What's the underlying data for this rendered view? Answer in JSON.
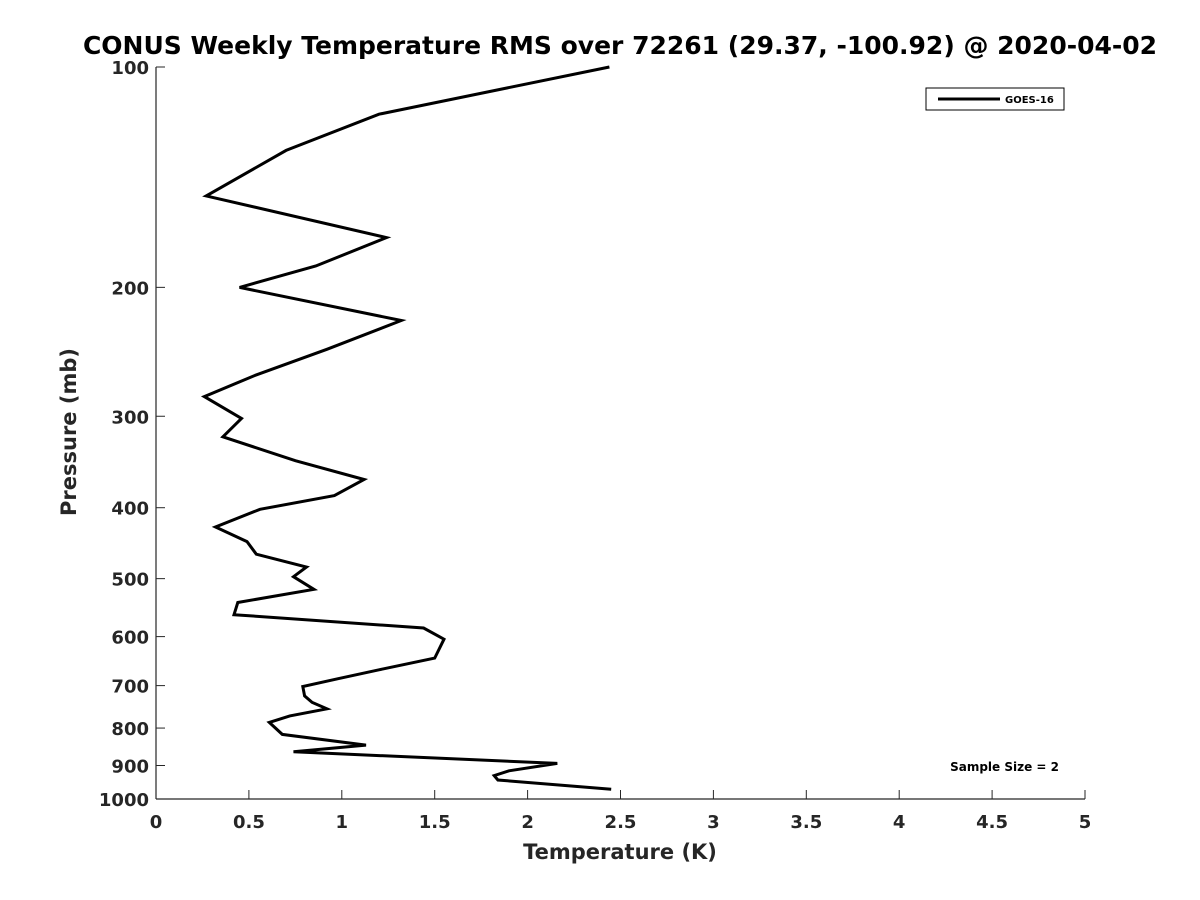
{
  "chart_data": {
    "type": "line",
    "title": "CONUS Weekly Temperature RMS over 72261 (29.37, -100.92) @ 2020-04-02",
    "xlabel": "Temperature (K)",
    "ylabel": "Pressure (mb)",
    "xlim": [
      0,
      5
    ],
    "ylim": [
      100,
      1000
    ],
    "y_scale": "log",
    "y_reversed": true,
    "grid": false,
    "legend_position": "top-right",
    "x_ticks": [
      "0",
      "0.5",
      "1",
      "1.5",
      "2",
      "2.5",
      "3",
      "3.5",
      "4",
      "4.5",
      "5"
    ],
    "x_tick_values": [
      0,
      0.5,
      1,
      1.5,
      2,
      2.5,
      3,
      3.5,
      4,
      4.5,
      5
    ],
    "y_ticks": [
      "100",
      "200",
      "300",
      "400",
      "500",
      "600",
      "700",
      "800",
      "900",
      "1000"
    ],
    "y_tick_values": [
      100,
      200,
      300,
      400,
      500,
      600,
      700,
      800,
      900,
      1000
    ],
    "series": [
      {
        "name": "GOES-16",
        "color": "#000000",
        "points": [
          [
            2.44,
            100
          ],
          [
            1.2,
            116
          ],
          [
            0.7,
            130
          ],
          [
            0.27,
            150
          ],
          [
            1.24,
            171
          ],
          [
            0.86,
            187
          ],
          [
            0.45,
            200
          ],
          [
            1.32,
            222
          ],
          [
            0.92,
            243
          ],
          [
            0.53,
            264
          ],
          [
            0.26,
            282
          ],
          [
            0.46,
            302
          ],
          [
            0.36,
            320
          ],
          [
            0.75,
            345
          ],
          [
            1.12,
            366
          ],
          [
            0.96,
            385
          ],
          [
            0.56,
            402
          ],
          [
            0.32,
            425
          ],
          [
            0.49,
            445
          ],
          [
            0.54,
            463
          ],
          [
            0.81,
            482
          ],
          [
            0.74,
            497
          ],
          [
            0.85,
            517
          ],
          [
            0.44,
            539
          ],
          [
            0.42,
            560
          ],
          [
            1.44,
            584
          ],
          [
            1.55,
            605
          ],
          [
            1.5,
            642
          ],
          [
            1.2,
            666
          ],
          [
            0.98,
            685
          ],
          [
            0.79,
            702
          ],
          [
            0.8,
            723
          ],
          [
            0.84,
            738
          ],
          [
            0.92,
            753
          ],
          [
            0.72,
            770
          ],
          [
            0.61,
            786
          ],
          [
            0.68,
            816
          ],
          [
            1.13,
            844
          ],
          [
            0.74,
            862
          ],
          [
            2.16,
            894
          ],
          [
            1.9,
            915
          ],
          [
            1.82,
            929
          ],
          [
            1.84,
            942
          ],
          [
            2.45,
            970
          ]
        ]
      }
    ],
    "legend": [
      "GOES-16"
    ],
    "annotations": [
      "Sample Size = 2"
    ]
  }
}
